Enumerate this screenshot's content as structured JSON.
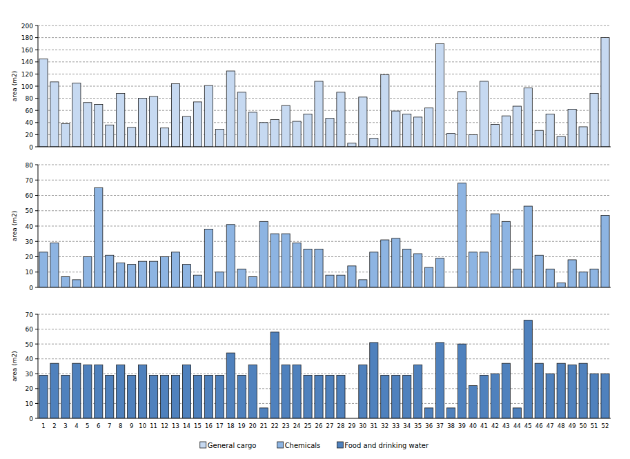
{
  "chart_data": [
    {
      "type": "bar",
      "ylabel": "area (m2)",
      "categories": [
        "1",
        "2",
        "3",
        "4",
        "5",
        "6",
        "7",
        "8",
        "9",
        "10",
        "11",
        "12",
        "13",
        "14",
        "15",
        "16",
        "17",
        "18",
        "19",
        "20",
        "21",
        "22",
        "23",
        "24",
        "25",
        "26",
        "27",
        "28",
        "29",
        "30",
        "31",
        "32",
        "33",
        "34",
        "35",
        "36",
        "37",
        "38",
        "39",
        "40",
        "41",
        "42",
        "43",
        "44",
        "45",
        "46",
        "47",
        "48",
        "49",
        "50",
        "51",
        "52"
      ],
      "series": [
        {
          "name": "General cargo",
          "color": "#c6d9f1",
          "values": [
            145,
            107,
            38,
            105,
            73,
            70,
            36,
            88,
            32,
            80,
            83,
            31,
            104,
            50,
            74,
            101,
            29,
            125,
            90,
            57,
            40,
            45,
            68,
            42,
            54,
            108,
            47,
            90,
            6,
            82,
            14,
            119,
            59,
            54,
            49,
            64,
            170,
            22,
            91,
            20,
            108,
            37,
            51,
            67,
            97,
            27,
            54,
            17,
            62,
            33,
            88,
            180
          ]
        }
      ],
      "ylim": [
        0,
        200
      ],
      "yticks": [
        0,
        20,
        40,
        60,
        80,
        100,
        120,
        140,
        160,
        180,
        200
      ],
      "grid": true,
      "tick_labels": "y",
      "legend": "bottom"
    },
    {
      "type": "bar",
      "ylabel": "area (m2)",
      "categories": [
        "1",
        "2",
        "3",
        "4",
        "5",
        "6",
        "7",
        "8",
        "9",
        "10",
        "11",
        "12",
        "13",
        "14",
        "15",
        "16",
        "17",
        "18",
        "19",
        "20",
        "21",
        "22",
        "23",
        "24",
        "25",
        "26",
        "27",
        "28",
        "29",
        "30",
        "31",
        "32",
        "33",
        "34",
        "35",
        "36",
        "37",
        "38",
        "39",
        "40",
        "41",
        "42",
        "43",
        "44",
        "45",
        "46",
        "47",
        "48",
        "49",
        "50",
        "51",
        "52"
      ],
      "series": [
        {
          "name": "Chemicals",
          "color": "#8db4e2",
          "values": [
            23,
            29,
            7,
            5,
            20,
            65,
            21,
            16,
            15,
            17,
            17,
            20,
            23,
            15,
            8,
            38,
            10,
            41,
            12,
            7,
            43,
            35,
            35,
            29,
            25,
            25,
            8,
            8,
            14,
            5,
            23,
            31,
            32,
            25,
            22,
            13,
            19,
            0,
            68,
            23,
            23,
            48,
            43,
            12,
            53,
            21,
            12,
            3,
            18,
            10,
            12,
            47
          ]
        }
      ],
      "ylim": [
        0,
        80
      ],
      "yticks": [
        0,
        10,
        20,
        30,
        40,
        50,
        60,
        70,
        80
      ],
      "grid": true,
      "tick_labels": "y",
      "legend": "bottom"
    },
    {
      "type": "bar",
      "ylabel": "area (m2)",
      "categories": [
        "1",
        "2",
        "3",
        "4",
        "5",
        "6",
        "7",
        "8",
        "9",
        "10",
        "11",
        "12",
        "13",
        "14",
        "15",
        "16",
        "17",
        "18",
        "19",
        "20",
        "21",
        "22",
        "23",
        "24",
        "25",
        "26",
        "27",
        "28",
        "29",
        "30",
        "31",
        "32",
        "33",
        "34",
        "35",
        "36",
        "37",
        "38",
        "39",
        "40",
        "41",
        "42",
        "43",
        "44",
        "45",
        "46",
        "47",
        "48",
        "49",
        "50",
        "51",
        "52"
      ],
      "series": [
        {
          "name": "Food and drinking water",
          "color": "#4f81bd",
          "values": [
            29,
            37,
            29,
            37,
            36,
            36,
            29,
            36,
            29,
            36,
            29,
            29,
            29,
            36,
            29,
            29,
            29,
            44,
            29,
            36,
            7,
            58,
            36,
            36,
            29,
            29,
            29,
            29,
            0,
            36,
            51,
            29,
            29,
            29,
            36,
            7,
            51,
            7,
            50,
            22,
            29,
            30,
            37,
            7,
            66,
            37,
            30,
            37,
            36,
            37,
            30,
            30
          ]
        }
      ],
      "ylim": [
        0,
        70
      ],
      "yticks": [
        0,
        10,
        20,
        30,
        40,
        50,
        60,
        70
      ],
      "grid": true,
      "legend": "bottom"
    }
  ]
}
